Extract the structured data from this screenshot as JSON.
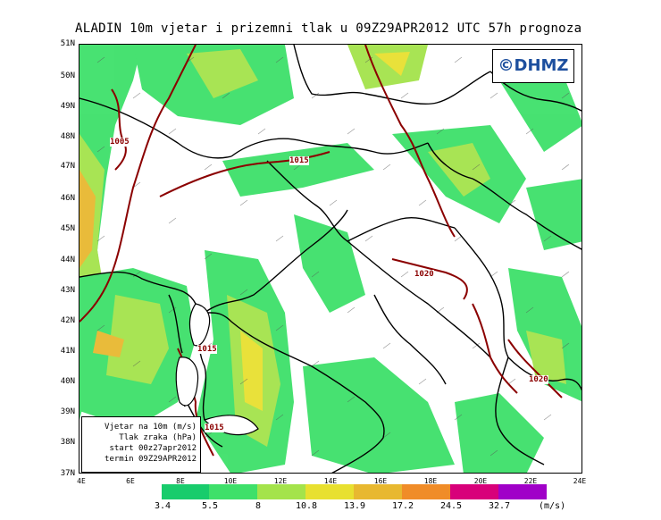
{
  "title": "ALADIN 10m vjetar i prizemni tlak u 09Z29APR2012 UTC 57h prognoza",
  "logo": "©DHMZ",
  "lat_labels": [
    "51N",
    "50N",
    "49N",
    "48N",
    "47N",
    "46N",
    "45N",
    "44N",
    "43N",
    "42N",
    "41N",
    "40N",
    "39N",
    "38N",
    "37N"
  ],
  "lon_labels": [
    "4E",
    "6E",
    "8E",
    "10E",
    "12E",
    "14E",
    "16E",
    "18E",
    "20E",
    "22E",
    "24E"
  ],
  "info": {
    "line1": "Vjetar na 10m (m/s)",
    "line2": "Tlak zraka (hPa)",
    "line3": "start 00z27apr2012",
    "line4": "termin 09Z29APR2012"
  },
  "isobars": {
    "l1005": "1005",
    "l1015a": "1015",
    "l1015b": "1015",
    "l1015c": "1015",
    "l1020a": "1020",
    "l1020b": "1020"
  },
  "colorbar": {
    "colors": [
      "#18cc6c",
      "#3ee06a",
      "#a4e34b",
      "#e8e030",
      "#e8b830",
      "#f08c28",
      "#e83020",
      "#e0002a",
      "#d8007a",
      "#a000c8"
    ],
    "labels": [
      "3.4",
      "5.5",
      "8",
      "10.8",
      "13.9",
      "17.2",
      "24.5",
      "32.7"
    ],
    "unit": "(m/s)"
  }
}
